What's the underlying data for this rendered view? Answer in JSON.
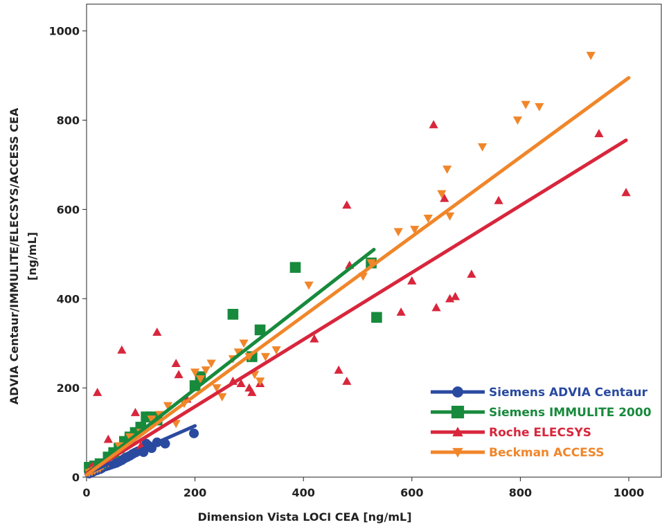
{
  "chart_data": {
    "type": "scatter",
    "title": "",
    "xlabel": "Dimension Vista LOCI CEA [ng/mL]",
    "ylabel_lines": [
      "ADVIA Centaur/IMMULITE/ELECSYS/ACCESS CEA",
      "[ng/mL]"
    ],
    "xlim": [
      0,
      1060
    ],
    "ylim": [
      0,
      1060
    ],
    "x_ticks": [
      0,
      200,
      400,
      600,
      800,
      1000
    ],
    "y_ticks": [
      0,
      200,
      400,
      600,
      800,
      1000
    ],
    "grid": false,
    "legend_position": "bottom-right",
    "series": [
      {
        "name": "Siemens ADVIA Centaur",
        "color": "#2a4aa0",
        "marker": "circle",
        "line": [
          [
            0,
            8
          ],
          [
            200,
            115
          ]
        ],
        "points": [
          [
            5,
            8
          ],
          [
            8,
            10
          ],
          [
            12,
            12
          ],
          [
            15,
            14
          ],
          [
            18,
            15
          ],
          [
            20,
            16
          ],
          [
            25,
            18
          ],
          [
            28,
            20
          ],
          [
            30,
            22
          ],
          [
            35,
            24
          ],
          [
            40,
            26
          ],
          [
            45,
            28
          ],
          [
            50,
            30
          ],
          [
            55,
            32
          ],
          [
            60,
            35
          ],
          [
            65,
            38
          ],
          [
            70,
            42
          ],
          [
            75,
            45
          ],
          [
            80,
            48
          ],
          [
            85,
            52
          ],
          [
            90,
            55
          ],
          [
            95,
            58
          ],
          [
            100,
            60
          ],
          [
            105,
            56
          ],
          [
            110,
            75
          ],
          [
            115,
            70
          ],
          [
            120,
            65
          ],
          [
            130,
            78
          ],
          [
            145,
            75
          ],
          [
            198,
            98
          ]
        ]
      },
      {
        "name": "Siemens IMMULITE 2000",
        "color": "#178a3c",
        "marker": "square",
        "line": [
          [
            0,
            8
          ],
          [
            530,
            510
          ]
        ],
        "points": [
          [
            5,
            22
          ],
          [
            15,
            25
          ],
          [
            25,
            30
          ],
          [
            40,
            45
          ],
          [
            50,
            55
          ],
          [
            60,
            65
          ],
          [
            70,
            80
          ],
          [
            80,
            90
          ],
          [
            90,
            100
          ],
          [
            100,
            112
          ],
          [
            110,
            135
          ],
          [
            120,
            135
          ],
          [
            130,
            128
          ],
          [
            200,
            205
          ],
          [
            210,
            225
          ],
          [
            270,
            365
          ],
          [
            305,
            270
          ],
          [
            320,
            330
          ],
          [
            385,
            470
          ],
          [
            525,
            480
          ],
          [
            535,
            358
          ]
        ]
      },
      {
        "name": "Roche ELECSYS",
        "color": "#d8263c",
        "marker": "triangle-up",
        "line": [
          [
            0,
            8
          ],
          [
            995,
            755
          ]
        ],
        "points": [
          [
            10,
            25
          ],
          [
            20,
            190
          ],
          [
            40,
            85
          ],
          [
            65,
            285
          ],
          [
            90,
            145
          ],
          [
            100,
            70
          ],
          [
            130,
            325
          ],
          [
            165,
            255
          ],
          [
            170,
            230
          ],
          [
            185,
            175
          ],
          [
            270,
            215
          ],
          [
            285,
            210
          ],
          [
            300,
            200
          ],
          [
            305,
            190
          ],
          [
            320,
            210
          ],
          [
            420,
            310
          ],
          [
            465,
            240
          ],
          [
            480,
            610
          ],
          [
            480,
            215
          ],
          [
            485,
            475
          ],
          [
            580,
            370
          ],
          [
            600,
            440
          ],
          [
            640,
            790
          ],
          [
            645,
            380
          ],
          [
            660,
            625
          ],
          [
            670,
            400
          ],
          [
            680,
            405
          ],
          [
            710,
            455
          ],
          [
            760,
            620
          ],
          [
            945,
            770
          ],
          [
            995,
            638
          ]
        ]
      },
      {
        "name": "Beckman ACCESS",
        "color": "#f0862a",
        "marker": "triangle-down",
        "line": [
          [
            0,
            5
          ],
          [
            1000,
            895
          ]
        ],
        "points": [
          [
            5,
            10
          ],
          [
            10,
            12
          ],
          [
            15,
            15
          ],
          [
            20,
            18
          ],
          [
            25,
            20
          ],
          [
            30,
            25
          ],
          [
            35,
            30
          ],
          [
            40,
            32
          ],
          [
            60,
            70
          ],
          [
            80,
            90
          ],
          [
            100,
            100
          ],
          [
            120,
            130
          ],
          [
            135,
            140
          ],
          [
            150,
            160
          ],
          [
            165,
            120
          ],
          [
            180,
            165
          ],
          [
            200,
            235
          ],
          [
            210,
            220
          ],
          [
            220,
            240
          ],
          [
            230,
            255
          ],
          [
            240,
            200
          ],
          [
            250,
            180
          ],
          [
            270,
            265
          ],
          [
            280,
            280
          ],
          [
            290,
            300
          ],
          [
            300,
            270
          ],
          [
            310,
            230
          ],
          [
            320,
            215
          ],
          [
            330,
            270
          ],
          [
            350,
            285
          ],
          [
            410,
            430
          ],
          [
            510,
            450
          ],
          [
            525,
            480
          ],
          [
            575,
            550
          ],
          [
            605,
            555
          ],
          [
            630,
            580
          ],
          [
            655,
            635
          ],
          [
            665,
            690
          ],
          [
            670,
            585
          ],
          [
            730,
            740
          ],
          [
            795,
            800
          ],
          [
            810,
            835
          ],
          [
            835,
            830
          ],
          [
            930,
            945
          ]
        ]
      }
    ]
  }
}
